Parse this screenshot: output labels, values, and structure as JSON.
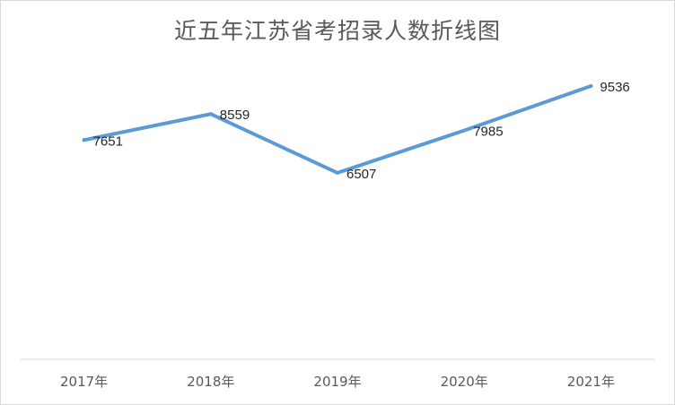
{
  "chart_data": {
    "type": "line",
    "title": "近五年江苏省考招录人数折线图",
    "categories": [
      "2017年",
      "2018年",
      "2019年",
      "2020年",
      "2021年"
    ],
    "series": [
      {
        "values": [
          7651,
          8559,
          6507,
          7985,
          9536
        ]
      }
    ],
    "ylim": [
      0,
      10000
    ],
    "grid": false,
    "legend": "none",
    "colors": {
      "line": "#5b9bd5",
      "axis": "#d9d9d9",
      "text": "#595959"
    }
  }
}
